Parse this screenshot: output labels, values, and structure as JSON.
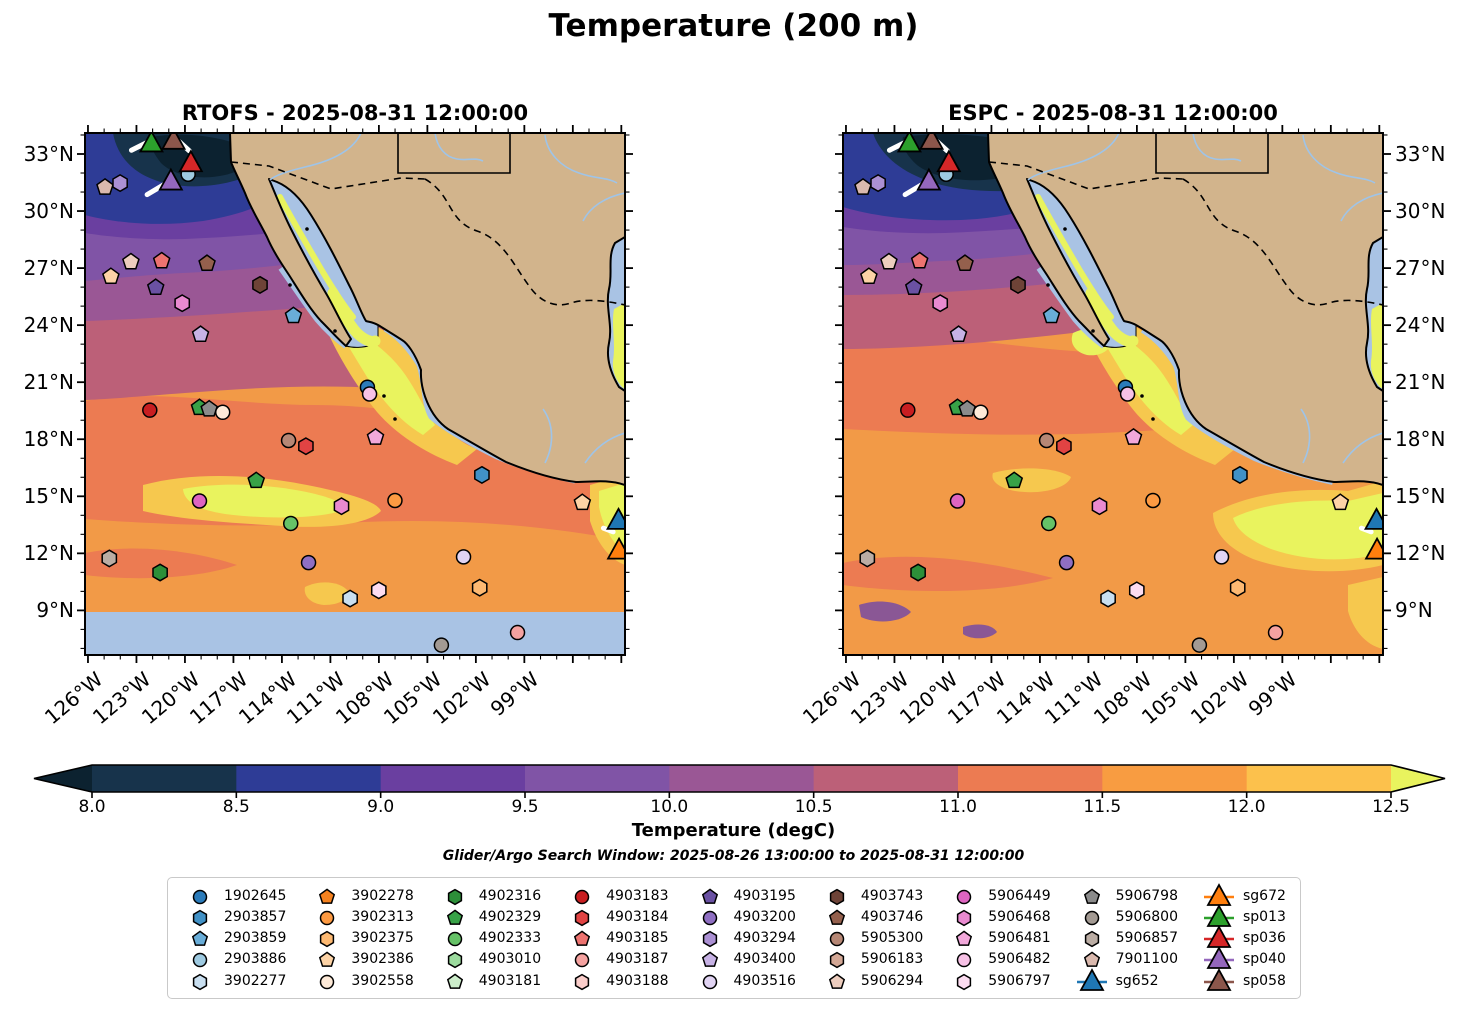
{
  "title": "Temperature (200 m)",
  "panels": [
    {
      "title": "RTOFS - 2025-08-31 12:00:00",
      "missing_band": true
    },
    {
      "title": "ESPC - 2025-08-31 12:00:00",
      "missing_band": false
    }
  ],
  "chart_data": {
    "type": "heatmap",
    "description": "Two filled-contour ocean temperature maps at 200 m depth off Baja California / Mexico with Argo float and glider positions",
    "x_tick_labels": [
      "126°W",
      "123°W",
      "120°W",
      "117°W",
      "114°W",
      "111°W",
      "108°W",
      "105°W",
      "102°W",
      "99°W"
    ],
    "y_tick_labels": [
      "33°N",
      "30°N",
      "27°N",
      "24°N",
      "21°N",
      "18°N",
      "15°N",
      "12°N",
      "9°N"
    ],
    "colorbar": {
      "label": "Temperature (degC)",
      "ticks": [
        "8.0",
        "8.5",
        "9.0",
        "9.5",
        "10.0",
        "10.5",
        "11.0",
        "11.5",
        "12.0",
        "12.5"
      ],
      "under_color": "#0c2230",
      "over_color": "#e9f35e",
      "segment_colors": [
        "#17334b",
        "#2e3c96",
        "#6a3fa0",
        "#8054a6",
        "#9a5795",
        "#bc6078",
        "#ec7b52",
        "#f89c41",
        "#fcc14c"
      ]
    },
    "footnote": "Glider/Argo Search Window: 2025-08-26 13:00:00 to 2025-08-31 12:00:00",
    "land_color": "#d2b48c",
    "shallow_color": "#a9c3e4",
    "markers": [
      {
        "id": "2903886",
        "shape": "c",
        "color": "#9ecae1",
        "x": 0.191,
        "y": 0.079
      },
      {
        "id": "sp013",
        "shape": "t",
        "color": "#2ca02c",
        "x": 0.123,
        "y": 0.02
      },
      {
        "id": "sp058",
        "shape": "t",
        "color": "#8c564b",
        "x": 0.164,
        "y": 0.015
      },
      {
        "id": "sp036",
        "shape": "t",
        "color": "#d62728",
        "x": 0.196,
        "y": 0.058
      },
      {
        "id": "sp040",
        "shape": "t",
        "color": "#9467bd",
        "x": 0.159,
        "y": 0.093
      },
      {
        "id": "7901100",
        "shape": "p",
        "color": "#dab9ae",
        "x": 0.037,
        "y": 0.104
      },
      {
        "id": "4903294",
        "shape": "h",
        "color": "#ab90d3",
        "x": 0.065,
        "y": 0.096
      },
      {
        "id": "5906294",
        "shape": "p",
        "color": "#edcdbe",
        "x": 0.085,
        "y": 0.247
      },
      {
        "id": "4903185",
        "shape": "p",
        "color": "#ed7370",
        "x": 0.142,
        "y": 0.245
      },
      {
        "id": "3902386",
        "shape": "p",
        "color": "#fdd3a6",
        "x": 0.048,
        "y": 0.275
      },
      {
        "id": "4903746",
        "shape": "p",
        "color": "#94604d",
        "x": 0.226,
        "y": 0.25
      },
      {
        "id": "4903195",
        "shape": "p",
        "color": "#6a51a3",
        "x": 0.131,
        "y": 0.296
      },
      {
        "id": "4903743",
        "shape": "h",
        "color": "#6e4337",
        "x": 0.324,
        "y": 0.291
      },
      {
        "id": "5906468",
        "shape": "h",
        "color": "#e98ad0",
        "x": 0.18,
        "y": 0.326
      },
      {
        "id": "2903859",
        "shape": "p",
        "color": "#69add8",
        "x": 0.386,
        "y": 0.35
      },
      {
        "id": "4903400",
        "shape": "p",
        "color": "#c7b2e5",
        "x": 0.214,
        "y": 0.386
      },
      {
        "id": "1902645",
        "shape": "c",
        "color": "#2b7bba",
        "x": 0.523,
        "y": 0.487
      },
      {
        "id": "5906482",
        "shape": "c",
        "color": "#f7c1e6",
        "x": 0.527,
        "y": 0.5
      },
      {
        "id": "4903183",
        "shape": "c",
        "color": "#c81e21",
        "x": 0.12,
        "y": 0.531
      },
      {
        "id": "4902329",
        "shape": "p",
        "color": "#38a247",
        "x": 0.212,
        "y": 0.526
      },
      {
        "id": "5906798",
        "shape": "p",
        "color": "#8b8b8b",
        "x": 0.23,
        "y": 0.529
      },
      {
        "id": "3902558",
        "shape": "c",
        "color": "#feead8",
        "x": 0.255,
        "y": 0.535
      },
      {
        "id": "5905300",
        "shape": "c",
        "color": "#b68775",
        "x": 0.377,
        "y": 0.589
      },
      {
        "id": "4903184",
        "shape": "h",
        "color": "#e14343",
        "x": 0.409,
        "y": 0.6
      },
      {
        "id": "5906481",
        "shape": "p",
        "color": "#f2a8db",
        "x": 0.538,
        "y": 0.583
      },
      {
        "id": "2903857",
        "shape": "h",
        "color": "#4191c6",
        "x": 0.735,
        "y": 0.655
      },
      {
        "id": "5906449",
        "shape": "c",
        "color": "#de65c1",
        "x": 0.212,
        "y": 0.705
      },
      {
        "id": "4902329",
        "shape": "p",
        "color": "#38a247",
        "x": 0.317,
        "y": 0.666
      },
      {
        "id": "5906468",
        "shape": "h",
        "color": "#e98ad0",
        "x": 0.475,
        "y": 0.715
      },
      {
        "id": "3902313",
        "shape": "c",
        "color": "#fd9a42",
        "x": 0.574,
        "y": 0.704
      },
      {
        "id": "4902333",
        "shape": "c",
        "color": "#66c267",
        "x": 0.381,
        "y": 0.748
      },
      {
        "id": "3902386",
        "shape": "p",
        "color": "#fdd3a6",
        "x": 0.921,
        "y": 0.708
      },
      {
        "id": "sg652",
        "shape": "t",
        "color": "#1f77b4",
        "x": 0.988,
        "y": 0.743
      },
      {
        "id": "sg672",
        "shape": "t",
        "color": "#ff7f0e",
        "x": 0.989,
        "y": 0.8
      },
      {
        "id": "4903200",
        "shape": "c",
        "color": "#8f6fc2",
        "x": 0.414,
        "y": 0.823
      },
      {
        "id": "4903516",
        "shape": "c",
        "color": "#e1d4f3",
        "x": 0.701,
        "y": 0.812
      },
      {
        "id": "3902375",
        "shape": "h",
        "color": "#fdb972",
        "x": 0.731,
        "y": 0.871
      },
      {
        "id": "3902277",
        "shape": "h",
        "color": "#c9dff0",
        "x": 0.491,
        "y": 0.892
      },
      {
        "id": "5906797",
        "shape": "h",
        "color": "#fcdcf1",
        "x": 0.544,
        "y": 0.876
      },
      {
        "id": "5906857",
        "shape": "h",
        "color": "#bbada4",
        "x": 0.045,
        "y": 0.815
      },
      {
        "id": "4902316",
        "shape": "h",
        "color": "#2d8f39",
        "x": 0.139,
        "y": 0.842
      },
      {
        "id": "4903187",
        "shape": "c",
        "color": "#f5a2a0",
        "x": 0.801,
        "y": 0.957
      },
      {
        "id": "5906800",
        "shape": "c",
        "color": "#a39a93",
        "x": 0.66,
        "y": 0.981
      }
    ],
    "tracks": [
      {
        "x1": 0.086,
        "y1": 0.033,
        "x2": 0.117,
        "y2": 0.017
      },
      {
        "x1": 0.173,
        "y1": 0.015,
        "x2": 0.193,
        "y2": 0.034
      },
      {
        "x1": 0.115,
        "y1": 0.118,
        "x2": 0.146,
        "y2": 0.099
      },
      {
        "x1": 0.96,
        "y1": 0.757,
        "x2": 0.978,
        "y2": 0.764
      }
    ],
    "legend": [
      {
        "label": "1902645",
        "shape": "c",
        "color": "#2b7bba"
      },
      {
        "label": "2903857",
        "shape": "h",
        "color": "#4191c6"
      },
      {
        "label": "2903859",
        "shape": "p",
        "color": "#69add8"
      },
      {
        "label": "2903886",
        "shape": "c",
        "color": "#9ecae1"
      },
      {
        "label": "3902277",
        "shape": "h",
        "color": "#c9dff0"
      },
      {
        "label": "3902278",
        "shape": "p",
        "color": "#f5821f"
      },
      {
        "label": "3902313",
        "shape": "c",
        "color": "#fd9a42"
      },
      {
        "label": "3902375",
        "shape": "h",
        "color": "#fdb972"
      },
      {
        "label": "3902386",
        "shape": "p",
        "color": "#fdd3a6"
      },
      {
        "label": "3902558",
        "shape": "c",
        "color": "#feead8"
      },
      {
        "label": "4902316",
        "shape": "h",
        "color": "#2d8f39"
      },
      {
        "label": "4902329",
        "shape": "p",
        "color": "#38a247"
      },
      {
        "label": "4902333",
        "shape": "c",
        "color": "#66c267"
      },
      {
        "label": "4903010",
        "shape": "h",
        "color": "#9cdb9e"
      },
      {
        "label": "4903181",
        "shape": "p",
        "color": "#cdeecb"
      },
      {
        "label": "4903183",
        "shape": "c",
        "color": "#c81e21"
      },
      {
        "label": "4903184",
        "shape": "h",
        "color": "#e14343"
      },
      {
        "label": "4903185",
        "shape": "p",
        "color": "#ed7370"
      },
      {
        "label": "4903187",
        "shape": "c",
        "color": "#f5a2a0"
      },
      {
        "label": "4903188",
        "shape": "h",
        "color": "#facdca"
      },
      {
        "label": "4903195",
        "shape": "p",
        "color": "#6a51a3"
      },
      {
        "label": "4903200",
        "shape": "c",
        "color": "#8f6fc2"
      },
      {
        "label": "4903294",
        "shape": "h",
        "color": "#ab90d3"
      },
      {
        "label": "4903400",
        "shape": "p",
        "color": "#c7b2e5"
      },
      {
        "label": "4903516",
        "shape": "c",
        "color": "#e1d4f3"
      },
      {
        "label": "4903743",
        "shape": "h",
        "color": "#6e4337"
      },
      {
        "label": "4903746",
        "shape": "p",
        "color": "#94604d"
      },
      {
        "label": "5905300",
        "shape": "c",
        "color": "#b68775"
      },
      {
        "label": "5906183",
        "shape": "h",
        "color": "#d3a795"
      },
      {
        "label": "5906294",
        "shape": "p",
        "color": "#edcdbe"
      },
      {
        "label": "5906449",
        "shape": "c",
        "color": "#de65c1"
      },
      {
        "label": "5906468",
        "shape": "h",
        "color": "#e98ad0"
      },
      {
        "label": "5906481",
        "shape": "p",
        "color": "#f2a8db"
      },
      {
        "label": "5906482",
        "shape": "c",
        "color": "#f7c1e6"
      },
      {
        "label": "5906797",
        "shape": "h",
        "color": "#fcdcf1"
      },
      {
        "label": "5906798",
        "shape": "p",
        "color": "#8b8b8b"
      },
      {
        "label": "5906800",
        "shape": "c",
        "color": "#a39a93"
      },
      {
        "label": "5906857",
        "shape": "h",
        "color": "#bbada4"
      },
      {
        "label": "7901100",
        "shape": "p",
        "color": "#dab9ae"
      },
      {
        "label": "sg652",
        "shape": "t",
        "color": "#1f77b4"
      },
      {
        "label": "sg672",
        "shape": "t",
        "color": "#ff7f0e"
      },
      {
        "label": "sp013",
        "shape": "t",
        "color": "#2ca02c"
      },
      {
        "label": "sp036",
        "shape": "t",
        "color": "#d62728"
      },
      {
        "label": "sp040",
        "shape": "t",
        "color": "#9467bd"
      },
      {
        "label": "sp058",
        "shape": "t",
        "color": "#8c564b"
      }
    ]
  }
}
